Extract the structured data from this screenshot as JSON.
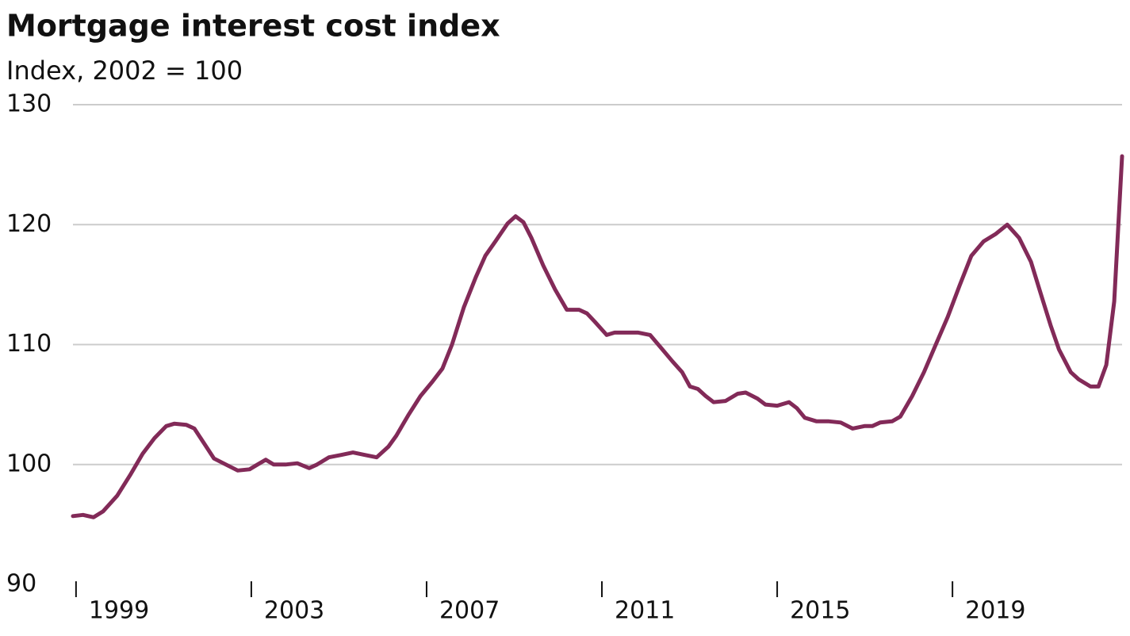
{
  "chart_data": {
    "type": "line",
    "title": "Mortgage interest cost index",
    "subtitle": "Index, 2002 = 100",
    "x": [
      1998.93,
      1999.16,
      1999.4,
      1999.62,
      1999.94,
      2000.25,
      2000.52,
      2000.79,
      2001.06,
      2001.24,
      2001.52,
      2001.7,
      2001.88,
      2002.15,
      2002.42,
      2002.69,
      2002.96,
      2003.14,
      2003.33,
      2003.51,
      2003.78,
      2004.05,
      2004.32,
      2004.5,
      2004.77,
      2005.05,
      2005.32,
      2005.59,
      2005.86,
      2006.13,
      2006.31,
      2006.58,
      2006.86,
      2007.13,
      2007.36,
      2007.58,
      2007.85,
      2008.12,
      2008.34,
      2008.57,
      2008.85,
      2009.03,
      2009.21,
      2009.39,
      2009.66,
      2009.93,
      2010.2,
      2010.48,
      2010.66,
      2010.84,
      2011.11,
      2011.29,
      2011.56,
      2011.83,
      2012.1,
      2012.38,
      2012.61,
      2012.83,
      2013.01,
      2013.19,
      2013.37,
      2013.55,
      2013.82,
      2014.1,
      2014.28,
      2014.55,
      2014.73,
      2015.0,
      2015.27,
      2015.45,
      2015.63,
      2015.9,
      2016.18,
      2016.45,
      2016.72,
      2016.99,
      2017.17,
      2017.35,
      2017.62,
      2017.81,
      2018.08,
      2018.35,
      2018.62,
      2018.89,
      2019.16,
      2019.43,
      2019.71,
      2019.98,
      2020.25,
      2020.52,
      2020.79,
      2021.01,
      2021.24,
      2021.43,
      2021.7,
      2021.88,
      2022.15,
      2022.33,
      2022.51,
      2022.69,
      2022.87
    ],
    "series": [
      {
        "name": "Mortgage interest cost index",
        "color": "#822a58",
        "values": [
          95.7,
          95.8,
          95.6,
          96.1,
          97.4,
          99.2,
          100.9,
          102.2,
          103.2,
          103.4,
          103.3,
          103.0,
          102.0,
          100.5,
          100.0,
          99.5,
          99.6,
          100.0,
          100.4,
          100.0,
          100.0,
          100.1,
          99.7,
          100.0,
          100.6,
          100.8,
          101.0,
          100.8,
          100.6,
          101.5,
          102.4,
          104.1,
          105.7,
          106.9,
          108.0,
          110.0,
          113.1,
          115.6,
          117.4,
          118.6,
          120.1,
          120.7,
          120.2,
          118.9,
          116.6,
          114.6,
          112.9,
          112.9,
          112.6,
          111.9,
          110.8,
          111.0,
          111.0,
          111.0,
          110.8,
          109.6,
          108.6,
          107.7,
          106.5,
          106.3,
          105.7,
          105.2,
          105.3,
          105.9,
          106.0,
          105.5,
          105.0,
          104.9,
          105.2,
          104.7,
          103.9,
          103.6,
          103.6,
          103.5,
          103.0,
          103.2,
          103.2,
          103.5,
          103.6,
          104.0,
          105.7,
          107.7,
          110.0,
          112.3,
          114.9,
          117.4,
          118.6,
          119.2,
          120.0,
          118.9,
          116.9,
          114.3,
          111.6,
          109.6,
          107.7,
          107.1,
          106.5,
          106.5,
          108.3,
          113.6,
          125.7
        ]
      }
    ],
    "xlim": [
      1998.93,
      2022.87
    ],
    "xticks": [
      1999,
      2003,
      2007,
      2011,
      2015,
      2019
    ],
    "ylim": [
      90,
      130
    ],
    "yticks": [
      90,
      100,
      110,
      120,
      130
    ],
    "grid": true
  }
}
